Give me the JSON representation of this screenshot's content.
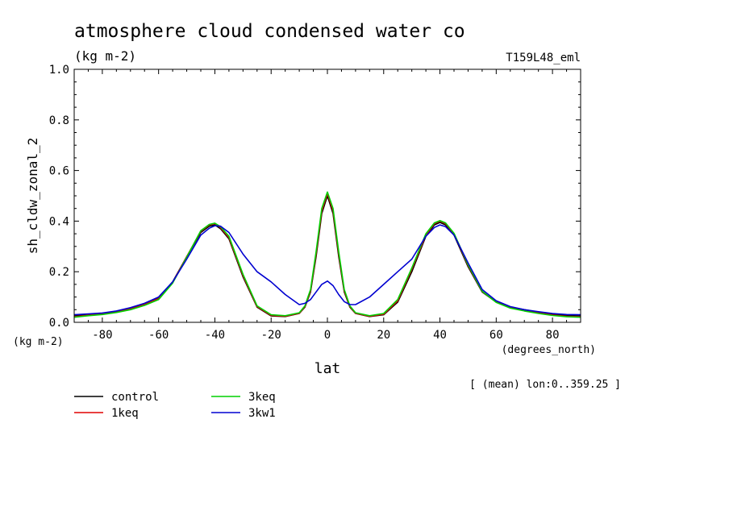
{
  "chart_data": {
    "type": "line",
    "title": "atmosphere cloud condensed water co",
    "subtitle": "(kg m-2)",
    "experiment": "T159L48_eml",
    "ylabel": "sh_cldw_zonal_2",
    "yunit": "(kg m-2)",
    "xlabel": "lat",
    "xunit": "(degrees_north)",
    "averaging_note": "[ (mean) lon:0..359.25 ]",
    "xlim": [
      -90,
      90
    ],
    "ylim": [
      0,
      1
    ],
    "x_ticks": [
      -80,
      -60,
      -40,
      -20,
      0,
      20,
      40,
      60,
      80
    ],
    "y_ticks": [
      0.0,
      0.2,
      0.4,
      0.6,
      0.8,
      1.0
    ],
    "x_tick_labels": [
      "-80",
      "-60",
      "-40",
      "-20",
      "0",
      "20",
      "40",
      "60",
      "80"
    ],
    "y_tick_labels": [
      "0.0",
      "0.2",
      "0.4",
      "0.6",
      "0.8",
      "1.0"
    ],
    "x": [
      -90,
      -85,
      -80,
      -75,
      -70,
      -65,
      -60,
      -55,
      -50,
      -45,
      -42,
      -40,
      -38,
      -35,
      -30,
      -25,
      -20,
      -15,
      -10,
      -8,
      -6,
      -4,
      -2,
      0,
      2,
      4,
      6,
      8,
      10,
      15,
      20,
      25,
      30,
      35,
      38,
      40,
      42,
      45,
      50,
      55,
      60,
      65,
      70,
      75,
      80,
      85,
      90
    ],
    "series": [
      {
        "name": "control",
        "color": "#000000",
        "values": [
          0.025,
          0.03,
          0.035,
          0.043,
          0.055,
          0.072,
          0.096,
          0.16,
          0.26,
          0.355,
          0.38,
          0.385,
          0.37,
          0.33,
          0.18,
          0.06,
          0.025,
          0.023,
          0.035,
          0.06,
          0.12,
          0.26,
          0.43,
          0.5,
          0.43,
          0.26,
          0.12,
          0.06,
          0.035,
          0.023,
          0.03,
          0.08,
          0.2,
          0.34,
          0.385,
          0.395,
          0.385,
          0.345,
          0.22,
          0.12,
          0.08,
          0.06,
          0.05,
          0.04,
          0.032,
          0.027,
          0.025
        ]
      },
      {
        "name": "1keq",
        "color": "#e00000",
        "values": [
          0.022,
          0.028,
          0.033,
          0.041,
          0.053,
          0.07,
          0.094,
          0.158,
          0.26,
          0.36,
          0.385,
          0.39,
          0.375,
          0.335,
          0.185,
          0.062,
          0.027,
          0.024,
          0.036,
          0.062,
          0.125,
          0.27,
          0.44,
          0.51,
          0.44,
          0.27,
          0.125,
          0.062,
          0.036,
          0.024,
          0.032,
          0.085,
          0.21,
          0.345,
          0.39,
          0.4,
          0.39,
          0.35,
          0.225,
          0.122,
          0.08,
          0.058,
          0.047,
          0.037,
          0.029,
          0.024,
          0.022
        ]
      },
      {
        "name": "3keq",
        "color": "#00d000",
        "values": [
          0.02,
          0.026,
          0.031,
          0.039,
          0.05,
          0.067,
          0.09,
          0.155,
          0.258,
          0.362,
          0.387,
          0.392,
          0.378,
          0.34,
          0.19,
          0.065,
          0.03,
          0.026,
          0.038,
          0.065,
          0.13,
          0.28,
          0.45,
          0.515,
          0.45,
          0.28,
          0.13,
          0.065,
          0.038,
          0.026,
          0.035,
          0.09,
          0.215,
          0.35,
          0.393,
          0.402,
          0.393,
          0.352,
          0.228,
          0.123,
          0.079,
          0.056,
          0.045,
          0.035,
          0.027,
          0.022,
          0.02
        ]
      },
      {
        "name": "3kw1",
        "color": "#0000d0",
        "values": [
          0.03,
          0.033,
          0.037,
          0.045,
          0.058,
          0.075,
          0.1,
          0.16,
          0.25,
          0.345,
          0.372,
          0.382,
          0.38,
          0.355,
          0.27,
          0.2,
          0.16,
          0.11,
          0.07,
          0.075,
          0.09,
          0.12,
          0.15,
          0.163,
          0.145,
          0.11,
          0.082,
          0.07,
          0.07,
          0.1,
          0.15,
          0.2,
          0.25,
          0.34,
          0.375,
          0.385,
          0.378,
          0.345,
          0.235,
          0.13,
          0.085,
          0.062,
          0.05,
          0.042,
          0.035,
          0.031,
          0.03
        ]
      }
    ],
    "legend_placement": "bottom-left",
    "grid": false
  }
}
